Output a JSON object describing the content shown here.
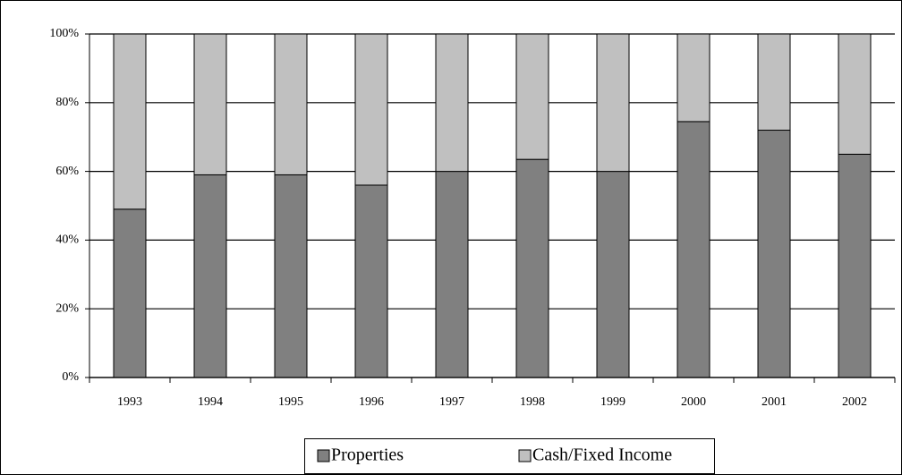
{
  "chart_data": {
    "type": "stacked_bar",
    "categories": [
      "1993",
      "1994",
      "1995",
      "1996",
      "1997",
      "1998",
      "1999",
      "2000",
      "2001",
      "2002"
    ],
    "series": [
      {
        "name": "Properties",
        "color": "#808080",
        "values": [
          49,
          59,
          59,
          56,
          60,
          63.5,
          60,
          74.5,
          72,
          65
        ]
      },
      {
        "name": "Cash/Fixed Income",
        "color": "#c0c0c0",
        "values": [
          51,
          41,
          41,
          44,
          40,
          36.5,
          40,
          25.5,
          28,
          35
        ]
      }
    ],
    "ylim": [
      0,
      100
    ],
    "yticks": [
      {
        "value": 0,
        "label": "0%"
      },
      {
        "value": 20,
        "label": "20%"
      },
      {
        "value": 40,
        "label": "40%"
      },
      {
        "value": 60,
        "label": "60%"
      },
      {
        "value": 80,
        "label": "80%"
      },
      {
        "value": 100,
        "label": "100%"
      }
    ],
    "grid": true,
    "legend": "bottom"
  }
}
